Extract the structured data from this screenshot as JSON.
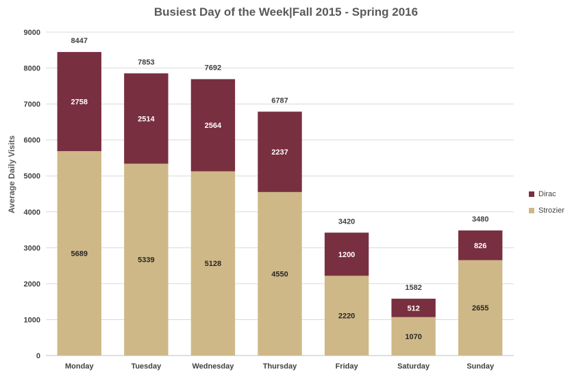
{
  "chart_data": {
    "type": "bar",
    "stacked": true,
    "title": "Busiest Day of the Week|Fall 2015 - Spring 2016",
    "xlabel": "",
    "ylabel": "Average Daily Visits",
    "ylim": [
      0,
      9000
    ],
    "yticks": [
      0,
      1000,
      2000,
      3000,
      4000,
      5000,
      6000,
      7000,
      8000,
      9000
    ],
    "grid": true,
    "legend_position": "right",
    "categories": [
      "Monday",
      "Tuesday",
      "Wednesday",
      "Thursday",
      "Friday",
      "Saturday",
      "Sunday"
    ],
    "series": [
      {
        "name": "Strozier",
        "color": "#CFB887",
        "values": [
          5689,
          5339,
          5128,
          4550,
          2220,
          1070,
          2655
        ]
      },
      {
        "name": "Dirac",
        "color": "#782F40",
        "values": [
          2758,
          2514,
          2564,
          2237,
          1200,
          512,
          826
        ]
      }
    ],
    "totals": [
      8447,
      7853,
      7692,
      6787,
      3420,
      1582,
      3480
    ]
  }
}
